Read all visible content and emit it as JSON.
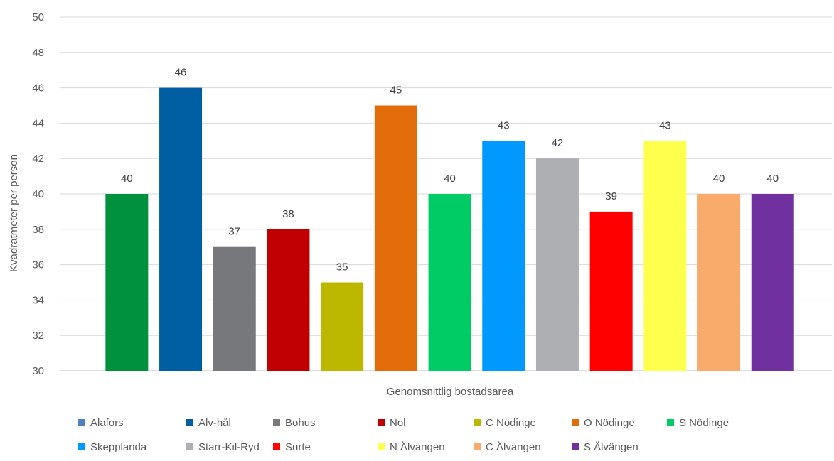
{
  "chart_data": {
    "type": "bar",
    "title": "",
    "xlabel": "Genomsnittlig bostadsarea",
    "ylabel": "Kvadratmeter per person",
    "ylim": [
      30,
      50
    ],
    "yticks": [
      30,
      32,
      34,
      36,
      38,
      40,
      42,
      44,
      46,
      48,
      50
    ],
    "grid": true,
    "legend_position": "bottom",
    "data_labels": true,
    "categories": [
      "Genomsnittlig bostadsarea"
    ],
    "series": [
      {
        "name": "Alafors",
        "values": [
          40
        ],
        "color": "#00913f",
        "legend_color": "#4f81bd"
      },
      {
        "name": "Alv-hål",
        "values": [
          46
        ],
        "color": "#005ea3",
        "legend_color": "#005ea3"
      },
      {
        "name": "Bohus",
        "values": [
          37
        ],
        "color": "#76787b",
        "legend_color": "#76787b"
      },
      {
        "name": "Nol",
        "values": [
          38
        ],
        "color": "#c00000",
        "legend_color": "#c00000"
      },
      {
        "name": "C Nödinge",
        "values": [
          35
        ],
        "color": "#bcb800",
        "legend_color": "#bcb800"
      },
      {
        "name": "Ö Nödinge",
        "values": [
          45
        ],
        "color": "#e36c0a",
        "legend_color": "#e36c0a"
      },
      {
        "name": "S Nödinge",
        "values": [
          40
        ],
        "color": "#00cc66",
        "legend_color": "#00cc66"
      },
      {
        "name": "Skepplanda",
        "values": [
          43
        ],
        "color": "#0099ff",
        "legend_color": "#0099ff"
      },
      {
        "name": "Starr-Kil-Ryd",
        "values": [
          42
        ],
        "color": "#adafb2",
        "legend_color": "#adafb2"
      },
      {
        "name": "Surte",
        "values": [
          39
        ],
        "color": "#ff0000",
        "legend_color": "#ff0000"
      },
      {
        "name": "N Älvängen",
        "values": [
          43
        ],
        "color": "#ffff4d",
        "legend_color": "#ffff4d"
      },
      {
        "name": "C Älvängen",
        "values": [
          40
        ],
        "color": "#f8ab6b",
        "legend_color": "#f8ab6b"
      },
      {
        "name": "S Älvängen",
        "values": [
          40
        ],
        "color": "#7030a0",
        "legend_color": "#7030a0"
      }
    ]
  }
}
